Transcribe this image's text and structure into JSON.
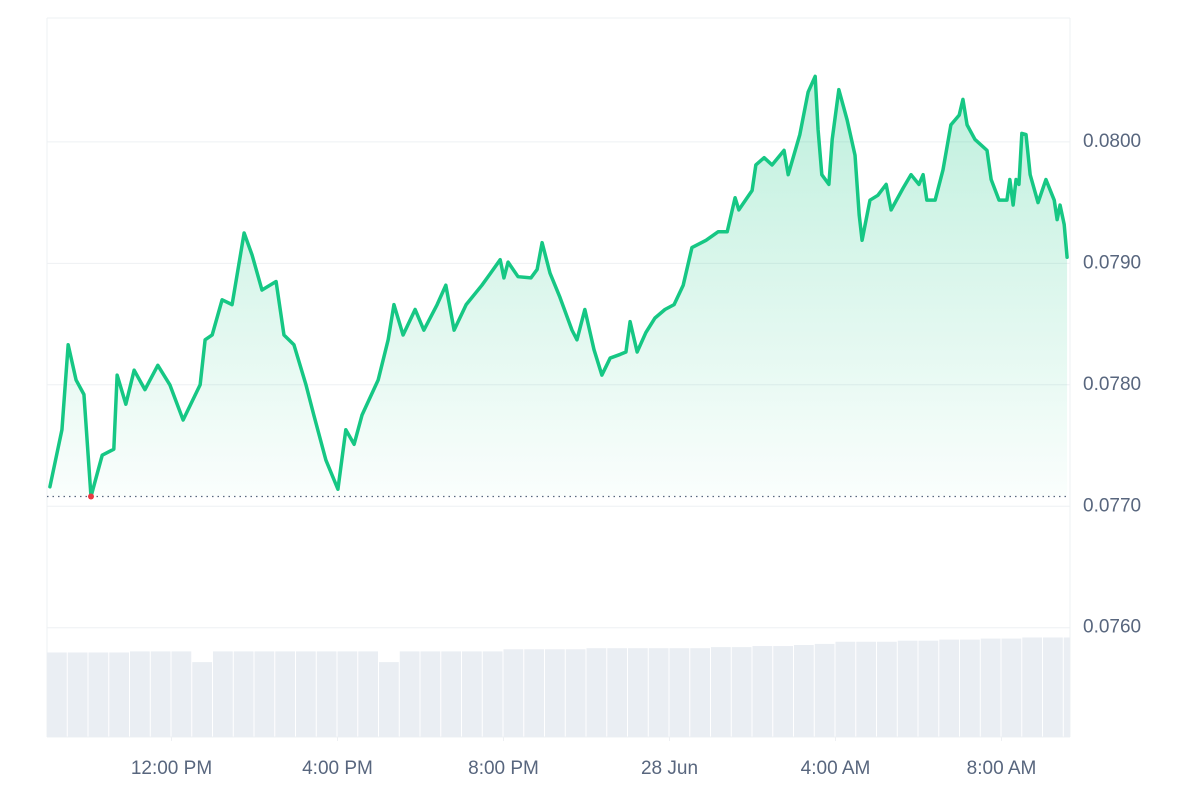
{
  "chart_data": {
    "type": "area",
    "x": [
      9.07,
      9.36,
      9.51,
      9.7,
      9.89,
      10.06,
      10.33,
      10.61,
      10.69,
      10.9,
      11.1,
      11.36,
      11.67,
      11.96,
      12.28,
      12.69,
      12.81,
      12.98,
      13.22,
      13.46,
      13.75,
      13.94,
      14.18,
      14.52,
      14.71,
      14.95,
      15.24,
      15.43,
      15.72,
      16.01,
      16.2,
      16.4,
      16.59,
      16.98,
      17.22,
      17.36,
      17.58,
      17.87,
      18.08,
      18.4,
      18.61,
      18.81,
      19.1,
      19.48,
      19.67,
      19.92,
      20.01,
      20.11,
      20.35,
      20.66,
      20.81,
      20.93,
      21.12,
      21.36,
      21.65,
      21.77,
      21.96,
      22.18,
      22.37,
      22.57,
      22.81,
      22.95,
      23.05,
      23.22,
      23.43,
      23.65,
      23.89,
      24.11,
      24.33,
      24.54,
      24.88,
      25.17,
      25.39,
      25.58,
      25.67,
      25.99,
      26.08,
      26.28,
      26.47,
      26.76,
      26.86,
      27.14,
      27.34,
      27.51,
      27.58,
      27.67,
      27.84,
      27.92,
      28.08,
      28.28,
      28.47,
      28.57,
      28.64,
      28.83,
      29.02,
      29.22,
      29.34,
      29.63,
      29.82,
      30.01,
      30.11,
      30.2,
      30.4,
      30.59,
      30.78,
      30.98,
      31.07,
      31.17,
      31.36,
      31.65,
      31.75,
      31.94,
      32.13,
      32.2,
      32.28,
      32.35,
      32.42,
      32.49,
      32.59,
      32.69,
      32.88,
      33.07,
      33.27,
      33.34,
      33.41,
      33.51,
      33.58
    ],
    "series": [
      {
        "color": "#16c784",
        "values": [
          0.07716,
          0.07763,
          0.07833,
          0.07804,
          0.07792,
          0.07708,
          0.07742,
          0.07747,
          0.07808,
          0.07784,
          0.07812,
          0.07796,
          0.07816,
          0.078,
          0.07771,
          0.078,
          0.07837,
          0.07841,
          0.0787,
          0.07866,
          0.07925,
          0.07907,
          0.07878,
          0.07885,
          0.07841,
          0.07833,
          0.078,
          0.07775,
          0.07738,
          0.07714,
          0.07763,
          0.07751,
          0.07775,
          0.07804,
          0.07837,
          0.07866,
          0.07841,
          0.07862,
          0.07845,
          0.07866,
          0.07882,
          0.07845,
          0.07866,
          0.07882,
          0.07891,
          0.07903,
          0.07888,
          0.07901,
          0.07889,
          0.07888,
          0.07895,
          0.07917,
          0.07892,
          0.07872,
          0.07845,
          0.07837,
          0.07862,
          0.07829,
          0.07808,
          0.07822,
          0.07825,
          0.07827,
          0.07852,
          0.07827,
          0.07843,
          0.07855,
          0.07862,
          0.07866,
          0.07882,
          0.07913,
          0.07919,
          0.07926,
          0.07926,
          0.07954,
          0.07944,
          0.0796,
          0.07981,
          0.07987,
          0.07981,
          0.07993,
          0.07973,
          0.08006,
          0.08041,
          0.08054,
          0.0801,
          0.07973,
          0.07965,
          0.08002,
          0.08043,
          0.08018,
          0.07989,
          0.0794,
          0.07919,
          0.07952,
          0.07956,
          0.07965,
          0.07944,
          0.07962,
          0.07973,
          0.07965,
          0.07973,
          0.07952,
          0.07952,
          0.07977,
          0.08014,
          0.08022,
          0.08035,
          0.08014,
          0.08002,
          0.07993,
          0.07969,
          0.07952,
          0.07952,
          0.07969,
          0.07948,
          0.07969,
          0.07965,
          0.08007,
          0.08006,
          0.07973,
          0.0795,
          0.07969,
          0.07952,
          0.07936,
          0.07948,
          0.07932,
          0.07905
        ]
      }
    ],
    "xlim": [
      9,
      33.65
    ],
    "xticks": [
      {
        "value": 12,
        "label": "12:00 PM"
      },
      {
        "value": 16,
        "label": "4:00 PM"
      },
      {
        "value": 20,
        "label": "8:00 PM"
      },
      {
        "value": 24,
        "label": "28 Jun"
      },
      {
        "value": 28,
        "label": "4:00 AM"
      },
      {
        "value": 32,
        "label": "8:00 AM"
      }
    ],
    "ylim": [
      0.0751,
      0.08102
    ],
    "yticks": [
      {
        "value": 0.076,
        "label": "0.0760"
      },
      {
        "value": 0.077,
        "label": "0.0770"
      },
      {
        "value": 0.078,
        "label": "0.0780"
      },
      {
        "value": 0.079,
        "label": "0.0790"
      },
      {
        "value": 0.08,
        "label": "0.0800"
      }
    ],
    "grid": true,
    "low_marker_color": "#ea3943",
    "volume": {
      "color": "#eaeef3",
      "lim": [
        0,
        100
      ],
      "x": [
        9,
        9.5,
        10,
        10.5,
        11,
        11.5,
        12,
        12.5,
        13,
        13.5,
        14,
        14.5,
        15,
        15.5,
        16,
        16.5,
        17,
        17.5,
        18,
        18.5,
        19,
        19.5,
        20,
        20.5,
        21,
        21.5,
        22,
        22.5,
        23,
        23.5,
        24,
        24.5,
        25,
        25.5,
        26,
        26.5,
        27,
        27.5,
        28,
        28.5,
        29,
        29.5,
        30,
        30.5,
        31,
        31.5,
        32,
        32.5,
        33,
        33.5
      ],
      "values": [
        79,
        79,
        79,
        79,
        80,
        80,
        80,
        70,
        80,
        80,
        80,
        80,
        80,
        80,
        80,
        80,
        70,
        80,
        80,
        80,
        80,
        80,
        82,
        82,
        82,
        82,
        83,
        83,
        83,
        83,
        83,
        83,
        84,
        84,
        85,
        85,
        86,
        87,
        89,
        89,
        89,
        90,
        90,
        91,
        91,
        92,
        92,
        93,
        93,
        93
      ]
    }
  }
}
